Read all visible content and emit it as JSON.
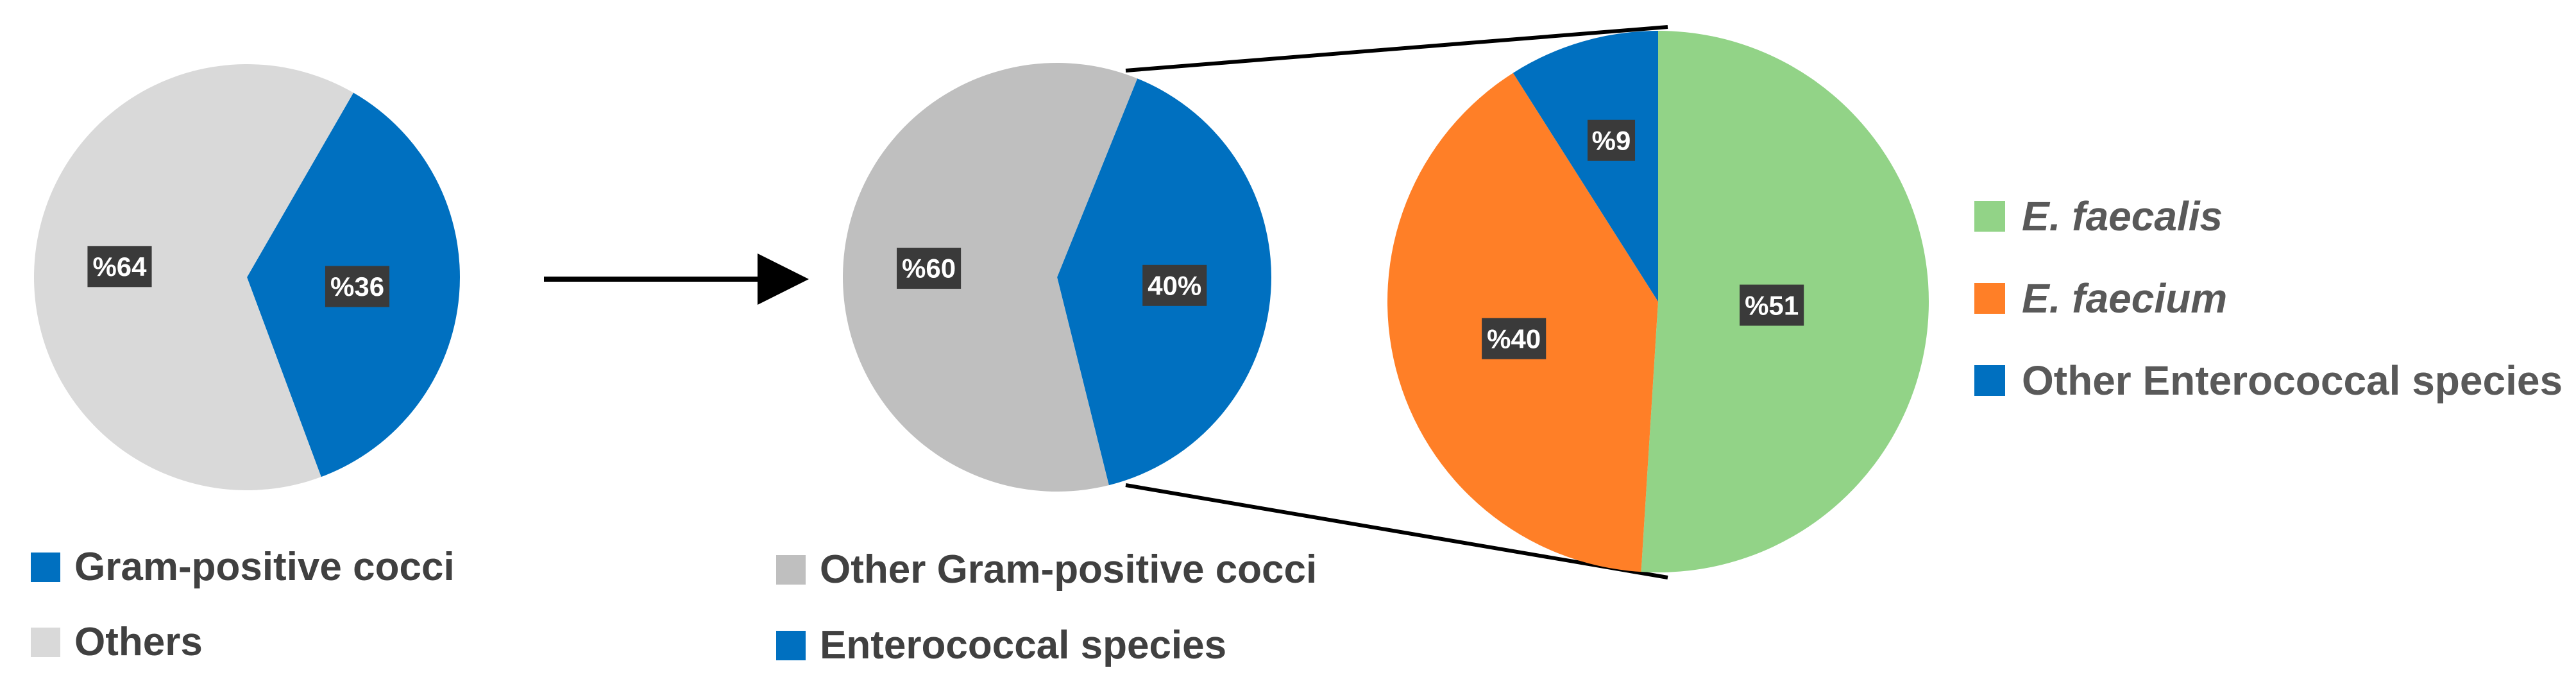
{
  "chart_data": [
    {
      "type": "pie",
      "title": "",
      "slices": [
        {
          "label": "Gram-positive cocci",
          "value": 36,
          "display": "%36",
          "color": "#0070C0"
        },
        {
          "label": "Others",
          "value": 64,
          "display": "%64",
          "color": "#D9D9D9"
        }
      ],
      "legend": {
        "position": "bottom-left",
        "entries": [
          "Gram-positive cocci",
          "Others"
        ]
      }
    },
    {
      "type": "pie",
      "title": "",
      "slices": [
        {
          "label": "Enterococcal species",
          "value": 40,
          "display": "40%",
          "color": "#0070C0"
        },
        {
          "label": "Other Gram-positive cocci",
          "value": 60,
          "display": "%60",
          "color": "#BFBFBF"
        }
      ],
      "legend": {
        "position": "bottom",
        "entries": [
          "Other Gram-positive cocci",
          "Enterococcal species"
        ]
      }
    },
    {
      "type": "pie",
      "title": "",
      "slices": [
        {
          "label": "E. faecalis",
          "value": 51,
          "display": "%51",
          "color": "#92D387"
        },
        {
          "label": "E. faecium",
          "value": 40,
          "display": "%40",
          "color": "#FF7F27"
        },
        {
          "label": "Other Enterococcal species",
          "value": 9,
          "display": "%9",
          "color": "#0070C0"
        }
      ],
      "legend": {
        "position": "right",
        "entries": [
          "E. faecalis",
          "E. faecium",
          "Other Enterococcal species"
        ]
      }
    }
  ],
  "legends": {
    "left": [
      {
        "label": "Gram-positive cocci",
        "color": "#0070C0"
      },
      {
        "label": "Others",
        "color": "#D9D9D9"
      }
    ],
    "middle": [
      {
        "label": "Other Gram-positive cocci",
        "color": "#BFBFBF"
      },
      {
        "label": "Enterococcal species",
        "color": "#0070C0"
      }
    ],
    "right": [
      {
        "label": "E. faecalis",
        "color": "#92D387"
      },
      {
        "label": "E. faecium",
        "color": "#FF7F27"
      },
      {
        "label": "Other Enterococcal species",
        "color": "#0070C0"
      }
    ]
  },
  "colors": {
    "label_box": "#3A3A3A",
    "label_text": "#FFFFFF",
    "connector": "#000000",
    "legend_text": "#404040",
    "right_legend_text": "#595959"
  }
}
